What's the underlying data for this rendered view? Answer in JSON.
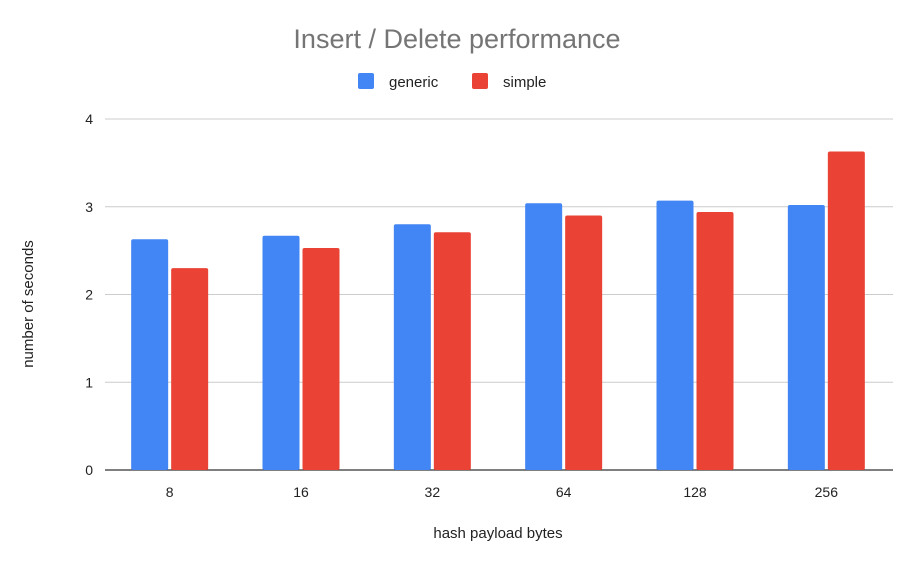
{
  "chart_data": {
    "type": "bar",
    "title": "Insert / Delete performance",
    "xlabel": "hash payload bytes",
    "ylabel": "number of seconds",
    "categories": [
      "8",
      "16",
      "32",
      "64",
      "128",
      "256"
    ],
    "series": [
      {
        "name": "generic",
        "color": "#4285f4",
        "values": [
          2.63,
          2.67,
          2.8,
          3.04,
          3.07,
          3.02
        ]
      },
      {
        "name": "simple",
        "color": "#ea4335",
        "values": [
          2.3,
          2.53,
          2.71,
          2.9,
          2.94,
          3.63
        ]
      }
    ],
    "ylim": [
      0,
      4
    ],
    "yticks": [
      "0",
      "1",
      "2",
      "3",
      "4"
    ],
    "grid": true,
    "legend": "top"
  }
}
